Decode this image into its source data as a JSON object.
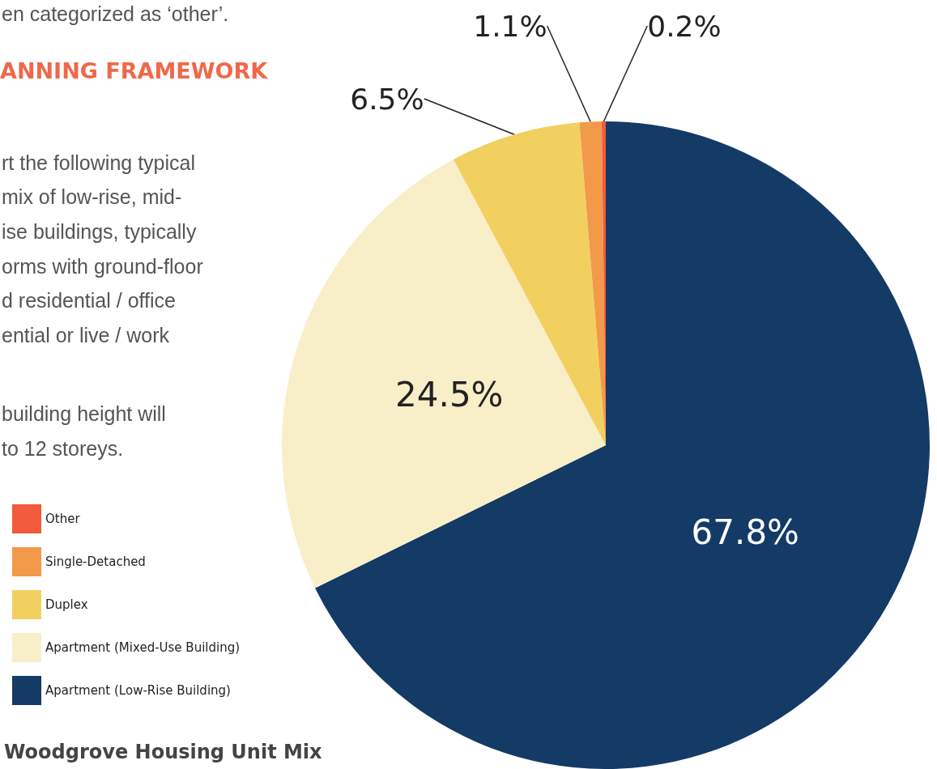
{
  "chart_data": {
    "type": "pie",
    "title": "Woodgrove Housing Unit Mix",
    "categories": [
      "Other",
      "Single-Detached",
      "Duplex",
      "Apartment (Mixed-Use Building)",
      "Apartment (Low-Rise Building)"
    ],
    "values": [
      0.2,
      1.1,
      6.5,
      24.5,
      67.8
    ],
    "value_labels": [
      "0.2%",
      "1.1%",
      "6.5%",
      "24.5%",
      "67.8%"
    ],
    "colors": [
      "#f15a3a",
      "#f2994a",
      "#f2d060",
      "#f8efc8",
      "#143a66"
    ],
    "legend": "left",
    "annotations": [
      "en categorized as ‘other’.",
      "ANNING FRAMEWORK",
      "rt the following typical",
      "mix of low-rise, mid-",
      "ise buildings, typically",
      "orms with ground-floor",
      "d residential / office",
      "ential or live / work",
      "building height will",
      "to 12 storeys."
    ]
  }
}
